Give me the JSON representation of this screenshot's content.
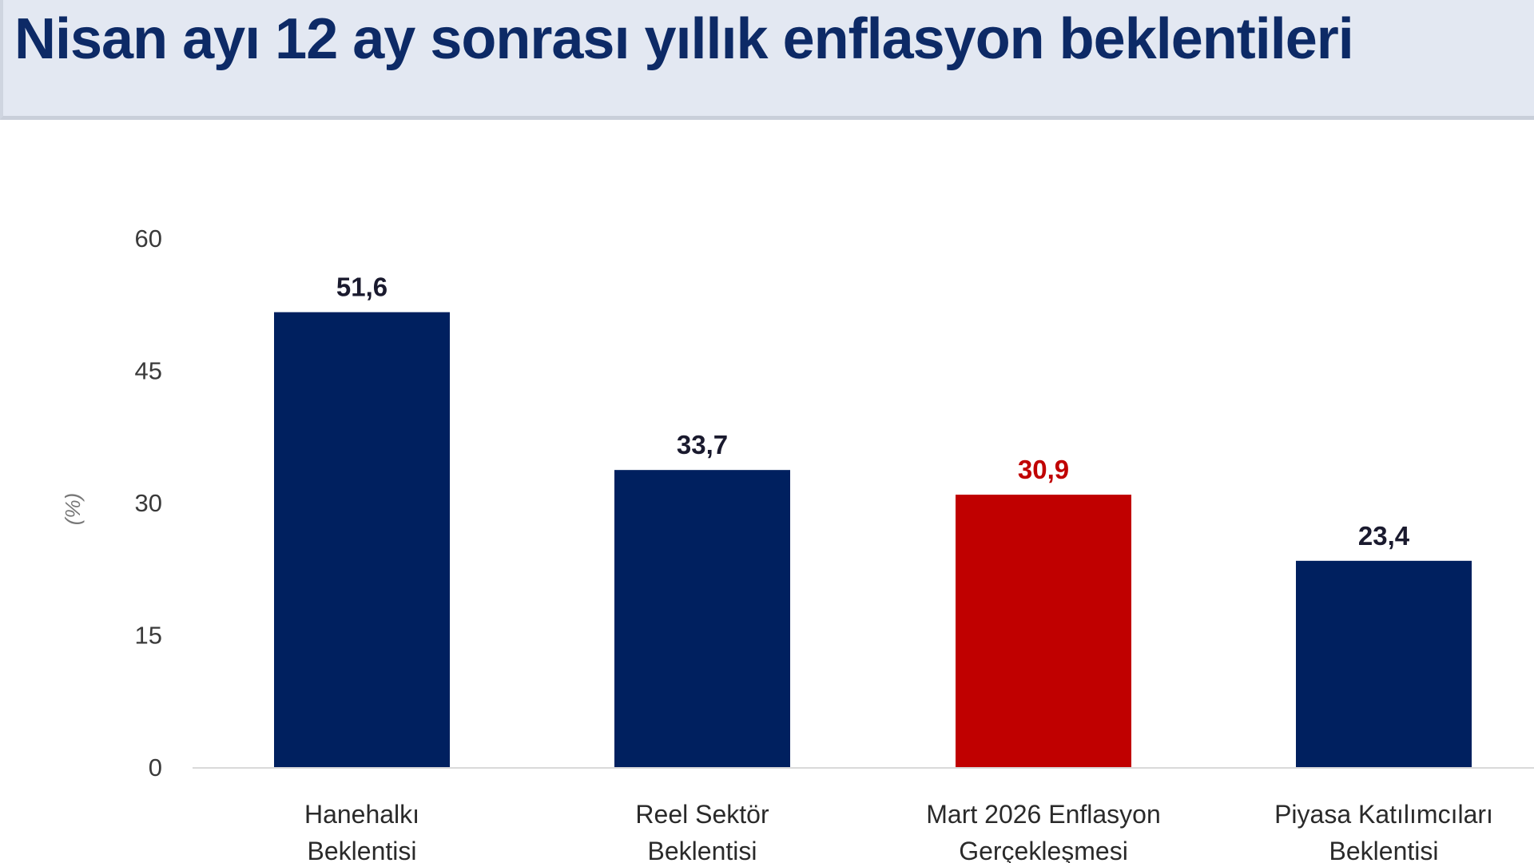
{
  "title": "Nisan ayı 12 ay sonrası yıllık enflasyon beklentileri",
  "chart_data": {
    "type": "bar",
    "title": "Nisan ayı 12 ay sonrası yıllık enflasyon beklentileri",
    "ylabel": "(%)",
    "xlabel": "",
    "ylim": [
      0,
      60
    ],
    "yticks": [
      0,
      15,
      30,
      45,
      60
    ],
    "grid": false,
    "categories": [
      [
        "Hanehalkı",
        "Beklentisi"
      ],
      [
        "Reel Sektör",
        "Beklentisi"
      ],
      [
        "Mart 2026 Enflasyon",
        "Gerçekleşmesi"
      ],
      [
        "Piyasa Katılımcıları",
        "Beklentisi"
      ]
    ],
    "values": [
      51.6,
      33.7,
      30.9,
      23.4
    ],
    "value_labels": [
      "51,6",
      "33,7",
      "30,9",
      "23,4"
    ],
    "colors": [
      "#00205f",
      "#00205f",
      "#c00000",
      "#00205f"
    ],
    "label_colors": [
      "#1a1a2e",
      "#1a1a2e",
      "#c00000",
      "#1a1a2e"
    ]
  }
}
